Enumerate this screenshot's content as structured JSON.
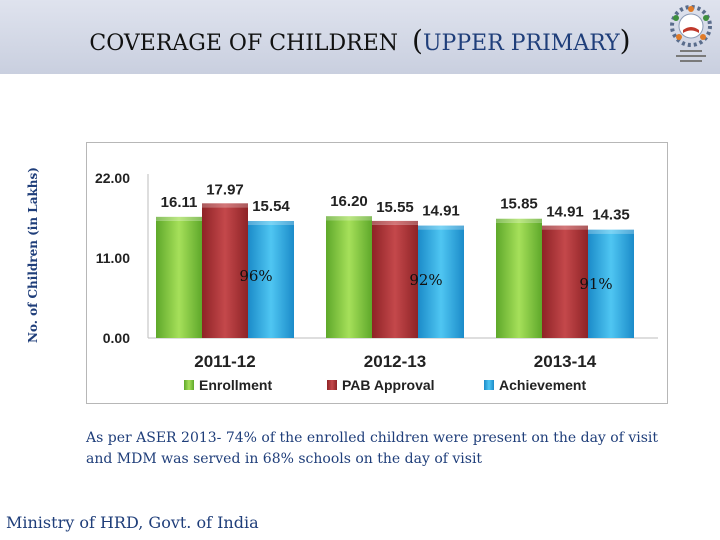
{
  "header": {
    "title_part1": "COVERAGE OF CHILDREN",
    "paren_open": "(",
    "title_part2": "UPPER PRIMARY",
    "paren_close": ")"
  },
  "chart_data": {
    "type": "bar",
    "ylabel": "No. of Children (in Lakhs)",
    "yticks": [
      "0.00",
      "11.00",
      "22.00"
    ],
    "ylim": [
      0,
      22
    ],
    "categories": [
      "2011-12",
      "2012-13",
      "2013-14"
    ],
    "series": [
      {
        "name": "Enrollment",
        "values": [
          16.11,
          16.2,
          15.85
        ],
        "labels": [
          "16.11",
          "16.20",
          "15.85"
        ]
      },
      {
        "name": "PAB Approval",
        "values": [
          17.97,
          15.55,
          14.91
        ],
        "labels": [
          "17.97",
          "15.55",
          "14.91"
        ]
      },
      {
        "name": "Achievement",
        "values": [
          15.54,
          14.91,
          14.35
        ],
        "labels": [
          "15.54",
          "14.91",
          "14.35"
        ]
      }
    ],
    "annotations": [
      "96%",
      "92%",
      "91%"
    ],
    "legend_position": "bottom",
    "grid": false
  },
  "colors": {
    "enrollment": "#7fcc3a",
    "pab_approval": "#b1373a",
    "achievement": "#2fa9e0",
    "title_blue": "#1f3e7a"
  },
  "note": "As per ASER 2013- 74% of the enrolled children were present on the day of visit and MDM was served in 68% schools on the day of visit",
  "footer": "Ministry of HRD, Govt. of India",
  "logo": {
    "icon": "mdm-emblem-icon"
  }
}
